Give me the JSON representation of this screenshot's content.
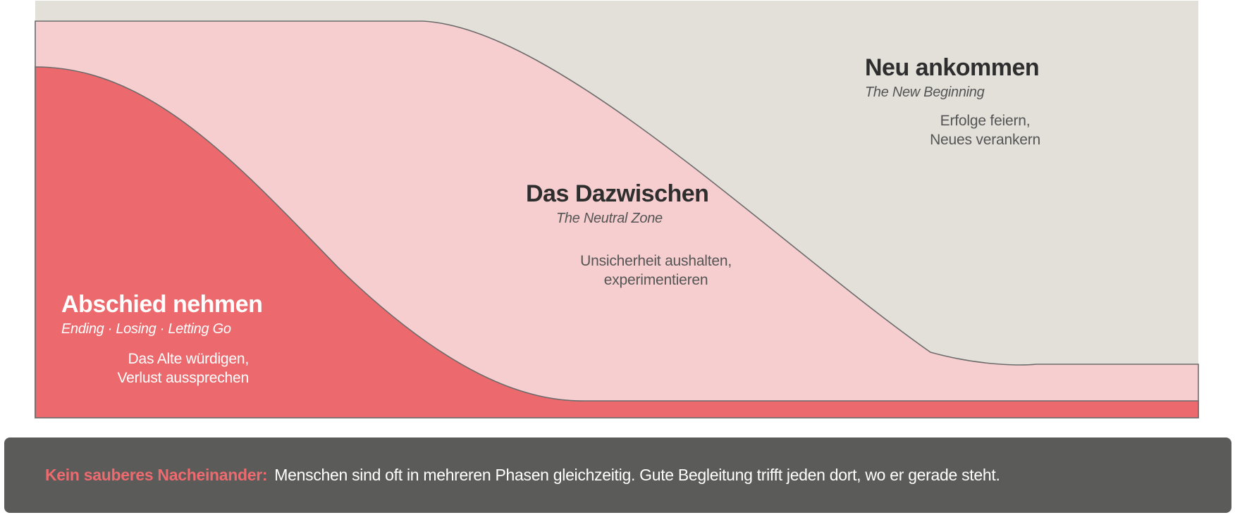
{
  "colors": {
    "new_beginning": "#e3e0da",
    "neutral_zone": "#f6cecf",
    "ending": "#ec6a6d",
    "boundary_line": "#6b6b6b",
    "note_background": "#5b5b59",
    "note_lead": "#ee6a6e"
  },
  "phases": [
    {
      "title": "Abschied nehmen",
      "subtitle": "Ending · Losing · Letting Go",
      "desc_line1": "Das Alte würdigen,",
      "desc_line2": "Verlust aussprechen"
    },
    {
      "title": "Das Dazwischen",
      "subtitle": "The Neutral Zone",
      "desc_line1": "Unsicherheit aushalten,",
      "desc_line2": "experimentieren"
    },
    {
      "title": "Neu ankommen",
      "subtitle": "The New Beginning",
      "desc_line1": "Erfolge feiern,",
      "desc_line2": "Neues verankern"
    }
  ],
  "note": {
    "lead": "Kein sauberes Nacheinander:",
    "text": "Menschen sind oft in mehreren Phasen gleichzeitig. Gute Begleitung trifft jeden dort, wo er gerade steht."
  }
}
